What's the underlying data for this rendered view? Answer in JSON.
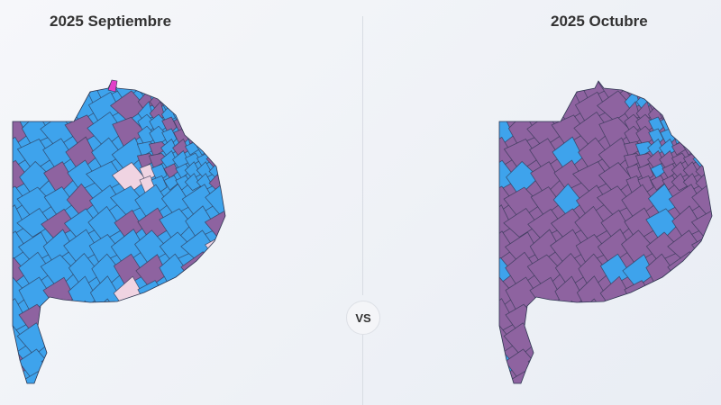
{
  "left_map": {
    "title": "2025 Septiembre"
  },
  "right_map": {
    "title": "2025 Octubre"
  },
  "vs_label": "VS",
  "colors": {
    "blue": "#3ea3ec",
    "purple": "#8e63a0",
    "light_pink": "#f0d4e2",
    "magenta": "#e040c8",
    "border": "#2d3550"
  }
}
